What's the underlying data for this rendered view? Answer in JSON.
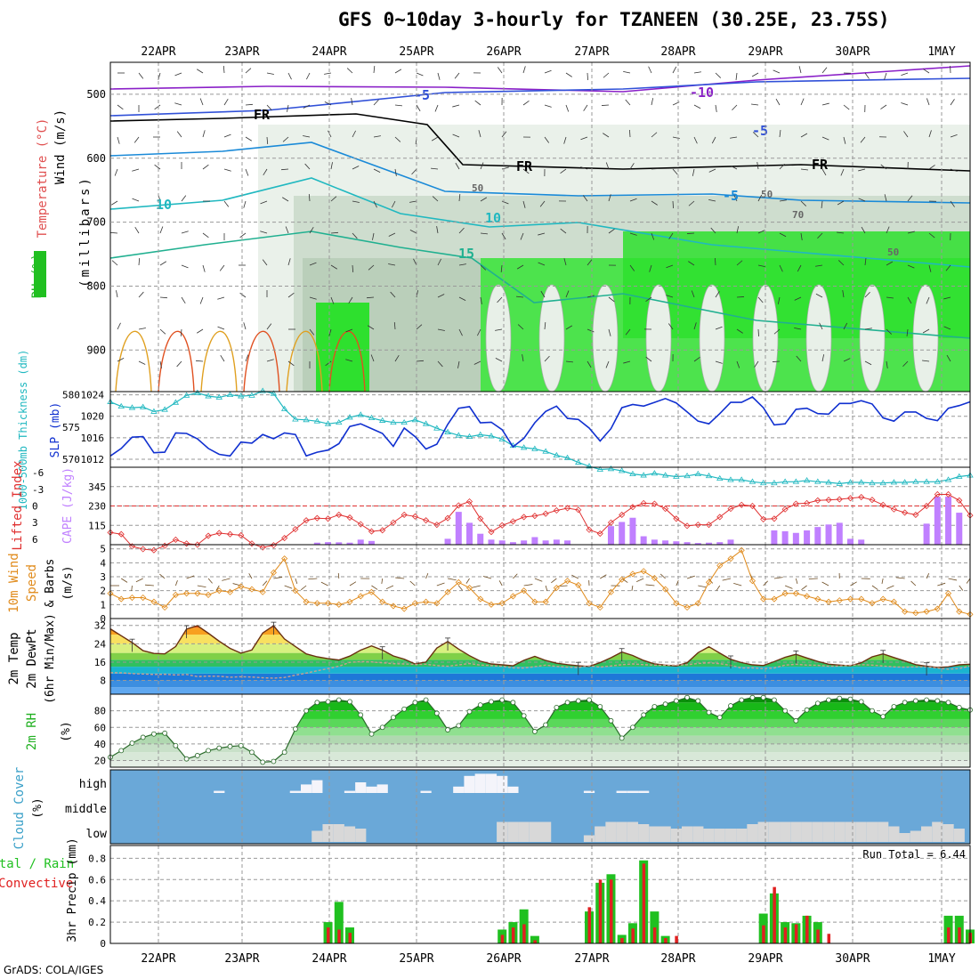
{
  "title": "GFS 0~10day 3-hourly for TZANEEN (30.25E, 23.75S)",
  "footer": "GrADS: COLA/IGES",
  "colors": {
    "wind_label": "#000000",
    "temperature_label": "#e05050",
    "rh_label": "#20b020",
    "thickness": "#20b8c0",
    "slp": "#1030d0",
    "lifted": "#e03030",
    "cape": "#c080ff",
    "wind10": "#e08a1a",
    "rh2m": "#20b020",
    "cloud_label": "#3aa0c8",
    "cloud_bg": "#6aa8d8",
    "precip_total": "#20c020",
    "precip_conv": "#e02020"
  },
  "chart_data": {
    "date_labels": [
      "22APR",
      "23APR",
      "24APR",
      "25APR",
      "26APR",
      "27APR",
      "28APR",
      "29APR",
      "30APR",
      "1MAY"
    ],
    "panels": [
      {
        "id": "upper-air",
        "type": "heatmap",
        "ylabel_parts": [
          "Wind (m/s)",
          "Temperature (°C)",
          "RH (%)",
          "(millibars)"
        ],
        "y_ticks": [
          500,
          600,
          700,
          800,
          900
        ],
        "contour_labels": [
          "-10",
          "-5",
          "FR",
          "FR",
          "FR",
          "-5",
          "-5",
          "10",
          "10",
          "15",
          "50",
          "50",
          "70",
          "50"
        ]
      },
      {
        "id": "slp-thickness",
        "type": "line",
        "ylabel_left": "1000-500mb Thickness (dm)",
        "ylabel_right": "SLP (mb)",
        "left_ticks": [
          580,
          575,
          570
        ],
        "right_ticks": [
          1024,
          1020,
          1016,
          1012
        ],
        "slp_values": [
          1012.6,
          1014,
          1016.1,
          1016.2,
          1013.2,
          1013.3,
          1016.9,
          1016.8,
          1015.8,
          1014,
          1012.9,
          1012.6,
          1015.2,
          1015,
          1016.6,
          1015.8,
          1016.9,
          1016.6,
          1012.6,
          1013.3,
          1013.7,
          1014.9,
          1018.1,
          1018.6,
          1017.7,
          1016.8,
          1014.4,
          1017.8,
          1016.2,
          1013.9,
          1014.8,
          1018.5,
          1021.5,
          1021.8,
          1018.8,
          1018.9,
          1017.5,
          1014.3,
          1015.9,
          1018.8,
          1020.9,
          1021.9,
          1019.6,
          1019.4,
          1017.8,
          1015.4,
          1017.7,
          1021.6,
          1022.2,
          1021.9,
          1022.6,
          1023.3,
          1022.5,
          1020.8,
          1019.1,
          1018.6,
          1020.5,
          1022.6,
          1022.6,
          1023.6,
          1021.6,
          1018.4,
          1018.6,
          1021.3,
          1021.5,
          1020.5,
          1020.4,
          1022.4,
          1022.4,
          1022.9,
          1022.3,
          1019.7,
          1019.1,
          1020.8,
          1020.8,
          1019.6,
          1019.2,
          1021.5,
          1022.0,
          1022.7
        ],
        "thickness_values": [
          578.9,
          578.2,
          578.0,
          578.1,
          577.4,
          577.7,
          578.8,
          579.9,
          580.3,
          579.8,
          579.6,
          580.0,
          579.8,
          579.9,
          580.6,
          580.2,
          577.8,
          576.2,
          576.1,
          575.9,
          575.5,
          575.7,
          576.5,
          576.9,
          576.4,
          576.0,
          575.7,
          575.7,
          576.1,
          575.5,
          574.8,
          574.2,
          573.7,
          573.5,
          573.8,
          573.6,
          573.1,
          572.1,
          571.8,
          571.6,
          571.2,
          570.6,
          570.2,
          569.5,
          568.9,
          568.4,
          568.5,
          568.2,
          567.7,
          567.5,
          567.8,
          567.5,
          567.3,
          567.4,
          567.7,
          567.4,
          567.0,
          566.8,
          566.8,
          566.5,
          566.3,
          566.3,
          566.5,
          566.5,
          566.7,
          566.5,
          566.4,
          566.2,
          566.4,
          566.4,
          566.3,
          566.3,
          566.4,
          566.4,
          566.5,
          566.5,
          566.5,
          566.8,
          567.3,
          567.5
        ]
      },
      {
        "id": "cape-li",
        "type": "bar",
        "ylabel_left": "Lifted Index",
        "ylabel_right": "CAPE (J/kg)",
        "left_ticks": [
          "-6",
          "-3",
          "0",
          "3",
          "6"
        ],
        "right_ticks": [
          345,
          230,
          115
        ],
        "cape_values": [
          0,
          0,
          0,
          0,
          0,
          0,
          0,
          0,
          0,
          0,
          0,
          0,
          0,
          0,
          0,
          0,
          0,
          0,
          0,
          12,
          15,
          14,
          12,
          30,
          22,
          0,
          0,
          0,
          0,
          0,
          0,
          35,
          195,
          130,
          65,
          30,
          25,
          15,
          25,
          45,
          25,
          30,
          25,
          0,
          0,
          0,
          110,
          135,
          160,
          50,
          30,
          25,
          20,
          15,
          10,
          12,
          15,
          30,
          0,
          0,
          0,
          85,
          80,
          70,
          85,
          105,
          120,
          130,
          35,
          30,
          0,
          0,
          0,
          0,
          0,
          125,
          285,
          285,
          190,
          0
        ],
        "li_values": [
          4.8,
          5.1,
          7.3,
          7.8,
          8.0,
          7.2,
          6.1,
          6.8,
          7.0,
          5.4,
          4.9,
          5.1,
          5.3,
          6.8,
          7.5,
          7.1,
          5.8,
          4.2,
          2.6,
          2.2,
          2.3,
          1.6,
          2.1,
          3.3,
          4.6,
          4.4,
          3.0,
          1.6,
          1.9,
          2.6,
          3.4,
          2.2,
          -0.1,
          -0.8,
          2.3,
          4.7,
          3.5,
          2.8,
          2.0,
          1.8,
          1.4,
          0.8,
          0.4,
          0.7,
          4.3,
          5.0,
          3.0,
          1.6,
          0.2,
          -0.5,
          -0.4,
          0.5,
          2.3,
          3.6,
          3.4,
          3.4,
          2.0,
          0.5,
          -0.2,
          0.0,
          2.4,
          2.3,
          0.6,
          -0.4,
          -0.5,
          -1.0,
          -1.1,
          -1.2,
          -1.4,
          -1.6,
          -1.1,
          -0.2,
          0.6,
          1.2,
          1.6,
          0.0,
          -2.1,
          -2.1,
          -1.0,
          1.7
        ]
      },
      {
        "id": "wind10m",
        "type": "line",
        "ylabel": "10m Wind Speed & Barbs (m/s)",
        "y_ticks": [
          5,
          4,
          3,
          2,
          1,
          0
        ],
        "wind_values": [
          1.8,
          1.4,
          1.5,
          1.5,
          1.2,
          0.8,
          1.7,
          1.8,
          1.8,
          1.7,
          2.0,
          1.9,
          2.3,
          2.1,
          1.9,
          3.3,
          4.3,
          2.0,
          1.2,
          1.1,
          1.1,
          1.0,
          1.2,
          1.6,
          1.9,
          1.2,
          0.9,
          0.7,
          1.1,
          1.2,
          1.1,
          1.9,
          2.6,
          2.2,
          1.4,
          1.0,
          1.1,
          1.6,
          2.0,
          1.2,
          1.2,
          2.2,
          2.7,
          2.4,
          1.1,
          0.8,
          1.9,
          2.8,
          3.2,
          3.4,
          2.9,
          2.1,
          1.1,
          0.8,
          1.1,
          2.6,
          3.8,
          4.3,
          4.9,
          2.7,
          1.4,
          1.4,
          1.8,
          1.8,
          1.6,
          1.4,
          1.2,
          1.3,
          1.4,
          1.4,
          1.1,
          1.4,
          1.2,
          0.5,
          0.4,
          0.5,
          0.7,
          1.8,
          0.5,
          0.3
        ]
      },
      {
        "id": "temp2m",
        "type": "area",
        "ylabel_parts": [
          "2m Temp",
          "2m DewPt",
          "(6hr Min/Max)"
        ],
        "y_ticks": [
          32,
          24,
          16,
          8
        ],
        "temp_values": [
          30.5,
          27.5,
          24.5,
          21.0,
          19.8,
          19.6,
          22.8,
          30.4,
          31.9,
          28.6,
          25.1,
          22.0,
          19.9,
          21.3,
          28.7,
          31.9,
          26.1,
          22.8,
          19.6,
          18.3,
          17.5,
          16.9,
          18.6,
          21.2,
          23.1,
          21.2,
          18.7,
          17.3,
          15.2,
          16.0,
          22.1,
          25.0,
          21.7,
          18.8,
          16.4,
          15.2,
          14.8,
          14.4,
          16.8,
          18.5,
          16.7,
          15.5,
          14.9,
          14.4,
          14.1,
          15.8,
          17.9,
          20.4,
          18.9,
          16.7,
          15.2,
          14.7,
          14.3,
          15.7,
          20.1,
          22.7,
          19.9,
          17.2,
          15.8,
          14.8,
          14.5,
          16.2,
          18.1,
          19.4,
          17.8,
          16.3,
          15.1,
          14.7,
          14.4,
          15.7,
          18.3,
          19.6,
          18.0,
          16.5,
          14.9,
          14.2,
          13.7,
          13.9,
          14.8,
          15.1
        ],
        "dewpt_values": [
          11.4,
          11.3,
          11.0,
          10.8,
          10.6,
          10.7,
          10.4,
          10.6,
          9.7,
          9.9,
          9.8,
          9.4,
          9.6,
          9.5,
          9.2,
          9.0,
          9.3,
          10.3,
          11.2,
          12.2,
          13.2,
          14.2,
          15.9,
          16.2,
          16.1,
          15.7,
          15.3,
          15.2,
          15.0,
          15.1,
          14.5,
          14.2,
          14.8,
          15.4,
          14.7,
          14.5,
          14.2,
          13.5,
          13.4,
          14.0,
          14.7,
          14.1,
          13.8,
          13.7,
          14.4,
          13.8,
          14.3,
          14.9,
          15.2,
          14.9,
          14.7,
          14.6,
          14.7,
          14.9,
          15.4,
          15.7,
          15.3,
          14.6,
          13.4,
          13.5,
          13.1,
          13.4,
          14.7,
          15.1,
          14.7,
          14.6,
          14.2,
          14.3,
          14.6,
          14.9,
          14.7,
          14.3,
          13.9,
          13.8,
          13.9,
          13.9,
          13.4,
          12.9,
          13.2,
          14.3
        ]
      },
      {
        "id": "rh2m",
        "type": "area",
        "ylabel_parts": [
          "2m RH",
          "(%)"
        ],
        "y_ticks": [
          80,
          60,
          40,
          20
        ],
        "rh_values": [
          24,
          32,
          41,
          48,
          52,
          53,
          38,
          22,
          26,
          32,
          35,
          37,
          38,
          30,
          18,
          19,
          30,
          58,
          80,
          90,
          91,
          93,
          91,
          75,
          52,
          60,
          72,
          82,
          90,
          93,
          77,
          57,
          62,
          79,
          87,
          91,
          93,
          90,
          74,
          55,
          63,
          84,
          90,
          92,
          93,
          85,
          68,
          47,
          60,
          75,
          85,
          88,
          92,
          96,
          92,
          78,
          72,
          86,
          93,
          96,
          96,
          93,
          80,
          68,
          81,
          89,
          93,
          95,
          94,
          91,
          80,
          73,
          85,
          90,
          92,
          93,
          92,
          90,
          84,
          81
        ]
      },
      {
        "id": "cloud",
        "type": "bar",
        "ylabel_parts": [
          "Cloud Cover",
          "(%)"
        ],
        "level_labels": [
          "high",
          "middle",
          "low"
        ],
        "high_values": [
          0,
          0,
          0,
          0,
          0,
          0,
          0,
          0,
          0,
          0,
          10,
          0,
          0,
          0,
          0,
          0,
          0,
          10,
          40,
          60,
          0,
          0,
          10,
          50,
          30,
          40,
          0,
          0,
          0,
          10,
          0,
          0,
          30,
          80,
          90,
          90,
          80,
          30,
          0,
          0,
          0,
          0,
          0,
          0,
          10,
          0,
          0,
          10,
          10,
          10,
          0,
          0,
          0,
          0,
          0,
          0,
          0,
          0,
          0,
          0,
          0,
          0,
          0,
          0,
          0,
          0,
          0,
          0,
          0,
          0,
          0,
          0,
          0,
          0,
          0,
          0,
          0,
          0,
          0,
          0
        ],
        "mid_values": [
          0,
          0,
          0,
          0,
          0,
          0,
          0,
          0,
          0,
          0,
          0,
          0,
          0,
          0,
          0,
          0,
          0,
          0,
          0,
          0,
          0,
          0,
          0,
          0,
          0,
          0,
          0,
          0,
          0,
          0,
          0,
          0,
          0,
          0,
          0,
          0,
          0,
          0,
          0,
          0,
          0,
          0,
          0,
          0,
          0,
          0,
          0,
          0,
          0,
          0,
          0,
          0,
          0,
          0,
          0,
          0,
          0,
          0,
          0,
          0,
          0,
          0,
          0,
          0,
          0,
          0,
          0,
          0,
          0,
          0,
          0,
          0,
          0,
          0,
          0,
          0,
          0,
          0,
          0,
          0
        ],
        "low_values": [
          0,
          0,
          0,
          0,
          0,
          0,
          0,
          0,
          0,
          0,
          0,
          0,
          0,
          0,
          0,
          0,
          0,
          0,
          0,
          50,
          80,
          80,
          70,
          60,
          0,
          0,
          0,
          0,
          0,
          0,
          0,
          0,
          0,
          0,
          0,
          0,
          90,
          90,
          90,
          90,
          90,
          0,
          0,
          0,
          30,
          70,
          90,
          90,
          90,
          80,
          70,
          70,
          60,
          70,
          70,
          60,
          60,
          60,
          60,
          80,
          90,
          90,
          90,
          90,
          90,
          90,
          90,
          90,
          90,
          90,
          90,
          90,
          70,
          40,
          50,
          70,
          90,
          80,
          60,
          0
        ]
      },
      {
        "id": "precip",
        "type": "bar",
        "ylabel_parts": [
          "Total / Rain",
          "Convective",
          "3hr Precip (mm)"
        ],
        "run_total_label": "Run Total = 6.44",
        "y_ticks": [
          0.8,
          0.6,
          0.4,
          0.2,
          0
        ],
        "total_values": [
          0,
          0,
          0,
          0,
          0,
          0,
          0,
          0,
          0,
          0,
          0,
          0,
          0,
          0,
          0,
          0,
          0,
          0,
          0,
          0,
          0.2,
          0.39,
          0.15,
          0,
          0,
          0,
          0,
          0,
          0,
          0,
          0,
          0,
          0,
          0,
          0,
          0,
          0.13,
          0.2,
          0.32,
          0.07,
          0,
          0,
          0,
          0,
          0.3,
          0.57,
          0.65,
          0.08,
          0.19,
          0.78,
          0.3,
          0.07,
          0,
          0,
          0,
          0,
          0,
          0,
          0,
          0,
          0.28,
          0.47,
          0.2,
          0.19,
          0.26,
          0.2,
          0,
          0,
          0,
          0,
          0,
          0,
          0,
          0,
          0,
          0,
          0,
          0.26,
          0.26,
          0.13
        ],
        "conv_values": [
          0,
          0,
          0,
          0,
          0,
          0,
          0,
          0,
          0,
          0,
          0,
          0,
          0,
          0,
          0,
          0,
          0,
          0,
          0,
          0,
          0.15,
          0.13,
          0.1,
          0,
          0,
          0,
          0,
          0,
          0,
          0,
          0,
          0,
          0,
          0,
          0,
          0,
          0.08,
          0.15,
          0.18,
          0.03,
          0,
          0,
          0,
          0,
          0.34,
          0.6,
          0.6,
          0.05,
          0.14,
          0.75,
          0.15,
          0.05,
          0.07,
          0,
          0,
          0,
          0,
          0,
          0,
          0,
          0.17,
          0.53,
          0.15,
          0.18,
          0.26,
          0.13,
          0.09,
          0,
          0,
          0,
          0,
          0,
          0,
          0,
          0,
          0,
          0,
          0.15,
          0.15,
          0.1
        ]
      }
    ]
  }
}
